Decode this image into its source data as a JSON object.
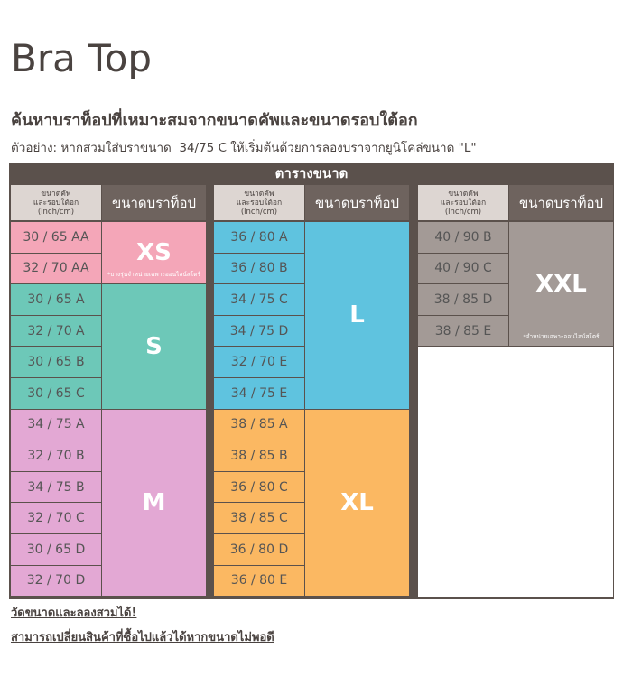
{
  "header": {
    "title": "Bra Top",
    "subtitle": "ค้นหาบราท็อปที่เหมาะสมจากขนาดคัพและขนาดรอบใต้อก",
    "example": "ตัวอย่าง: หากสวมใส่บราขนาด  34/75 C ให้เริ่มต้นด้วยการลองบราจากยูนิโคล่ขนาด \"L\""
  },
  "table": {
    "title": "ตารางขนาด",
    "groups": [
      {
        "header": [
          [
            "ขนาดคัพ",
            "และรอบใต้อก",
            "(inch/cm)"
          ],
          "ขนาดบราท็อป"
        ],
        "sizes": [
          {
            "label": "XS",
            "color": "#f4a6b8",
            "note": "*บางรุ่นจำหน่ายเฉพาะออนไลน์สโตร์",
            "rows": [
              "30 / 65 AA",
              "32 / 70 AA"
            ]
          },
          {
            "label": "S",
            "color": "#6dc8b8",
            "rows": [
              "30 / 65 A",
              "32 / 70 A",
              "30 / 65 B",
              "30 / 65 C"
            ]
          },
          {
            "label": "M",
            "color": "#e3a8d4",
            "rows": [
              "34 / 75 A",
              "32 / 70 B",
              "34 / 75 B",
              "32 / 70 C",
              "30 / 65 D",
              "32 / 70 D"
            ]
          }
        ]
      },
      {
        "header": [
          [
            "ขนาดคัพ",
            "และรอบใต้อก",
            "(inch/cm)"
          ],
          "ขนาดบราท็อป"
        ],
        "sizes": [
          {
            "label": "L",
            "color": "#5fc3df",
            "rows": [
              "36 / 80 A",
              "36 / 80 B",
              "34 / 75 C",
              "34 / 75 D",
              "32 / 70 E",
              "34 / 75 E"
            ]
          },
          {
            "label": "XL",
            "color": "#fbb862",
            "rows": [
              "38 / 85 A",
              "38 / 85 B",
              "36 / 80 C",
              "38 / 85 C",
              "36 / 80 D",
              "36 / 80 E"
            ]
          }
        ]
      },
      {
        "header": [
          [
            "ขนาดคัพ",
            "และรอบใต้อก",
            "(inch/cm)"
          ],
          "ขนาดบราท็อป"
        ],
        "sizes": [
          {
            "label": "XXL",
            "color": "#a39a96",
            "note": "*จำหน่ายเฉพาะออนไลน์สโตร์",
            "rows": [
              "40 / 90 B",
              "40 / 90 C",
              "38 / 85 D",
              "38 / 85 E"
            ]
          }
        ]
      }
    ]
  },
  "footer": {
    "links": [
      "วัดขนาดและลองสวมได้!",
      "สามารถเปลี่ยนสินค้าที่ซื้อไปแล้วได้หากขนาดไม่พอดี"
    ]
  }
}
